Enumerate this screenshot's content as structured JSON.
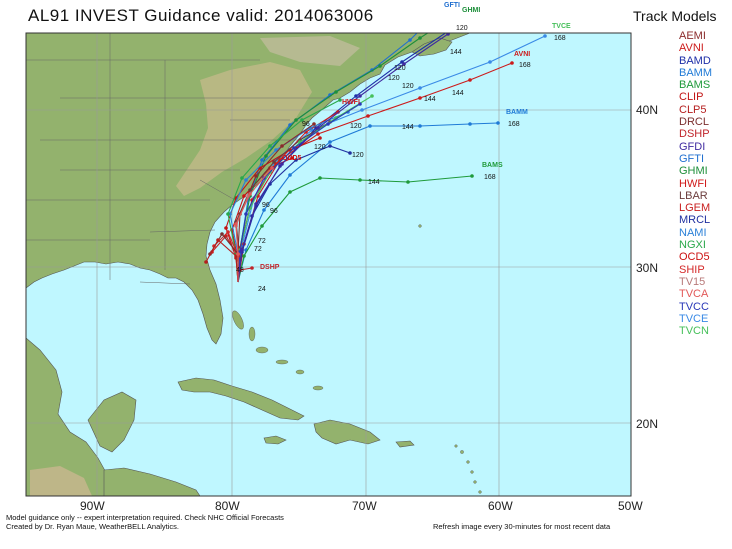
{
  "title": "AL91 INVEST Guidance valid: 2014063006",
  "legend": {
    "title": "Track Models",
    "models": [
      {
        "name": "AEMI",
        "color": "#8b2b2b"
      },
      {
        "name": "AVNI",
        "color": "#cc1b1b"
      },
      {
        "name": "BAMD",
        "color": "#1e2fa8"
      },
      {
        "name": "BAMM",
        "color": "#1f7ad6"
      },
      {
        "name": "BAMS",
        "color": "#1f9a3a"
      },
      {
        "name": "CLIP",
        "color": "#c21414"
      },
      {
        "name": "CLP5",
        "color": "#b51e1e"
      },
      {
        "name": "DRCL",
        "color": "#7a2e2e"
      },
      {
        "name": "DSHP",
        "color": "#c0242a"
      },
      {
        "name": "GFDI",
        "color": "#3f2aa0"
      },
      {
        "name": "GFTI",
        "color": "#1f6fd0"
      },
      {
        "name": "GHMI",
        "color": "#1d8f3a"
      },
      {
        "name": "HWFI",
        "color": "#d01a1a"
      },
      {
        "name": "LBAR",
        "color": "#6b3c3c"
      },
      {
        "name": "LGEM",
        "color": "#c81e1e"
      },
      {
        "name": "MRCL",
        "color": "#2030a0"
      },
      {
        "name": "NAMI",
        "color": "#2a80d8"
      },
      {
        "name": "NGXI",
        "color": "#2aa84a"
      },
      {
        "name": "OCD5",
        "color": "#cc1010"
      },
      {
        "name": "SHIP",
        "color": "#d42828"
      },
      {
        "name": "TV15",
        "color": "#b87a7a"
      },
      {
        "name": "TVCA",
        "color": "#e25858"
      },
      {
        "name": "TVCC",
        "color": "#2a38b8"
      },
      {
        "name": "TVCE",
        "color": "#3a8ae6"
      },
      {
        "name": "TVCN",
        "color": "#46c05a"
      }
    ]
  },
  "axes": {
    "lon_labels": [
      "90W",
      "80W",
      "70W",
      "60W",
      "50W"
    ],
    "lat_labels": [
      "40N",
      "30N",
      "20N"
    ]
  },
  "track_labels": {
    "gfti": "GFTI",
    "ghmi": "GHMI",
    "tvce": "TVCE",
    "avni": "AVNI",
    "bamm": "BAMM",
    "hwfi": "HWFI",
    "bams": "BAMS",
    "dshp": "DSHP",
    "ocd5": "OCD5"
  },
  "forecast_hour_labels": {
    "h168": "168",
    "h144": "144",
    "h120": "120",
    "h96": "96",
    "h72": "72",
    "h48": "48",
    "h24": "24"
  },
  "colors": {
    "ocean": "#bff7ff",
    "grid": "#9a9a9a",
    "land_low": "#92b46e",
    "land_mid": "#c7b98a",
    "land_high": "#d0c4b2"
  },
  "footer": {
    "line1": "Model guidance only -- expert interpretation required.  Check NHC Official Forecasts",
    "line2": "Created by Dr. Ryan Maue, WeatherBELL Analytics.",
    "line3": "Refresh image every 30-minutes for most recent data"
  }
}
